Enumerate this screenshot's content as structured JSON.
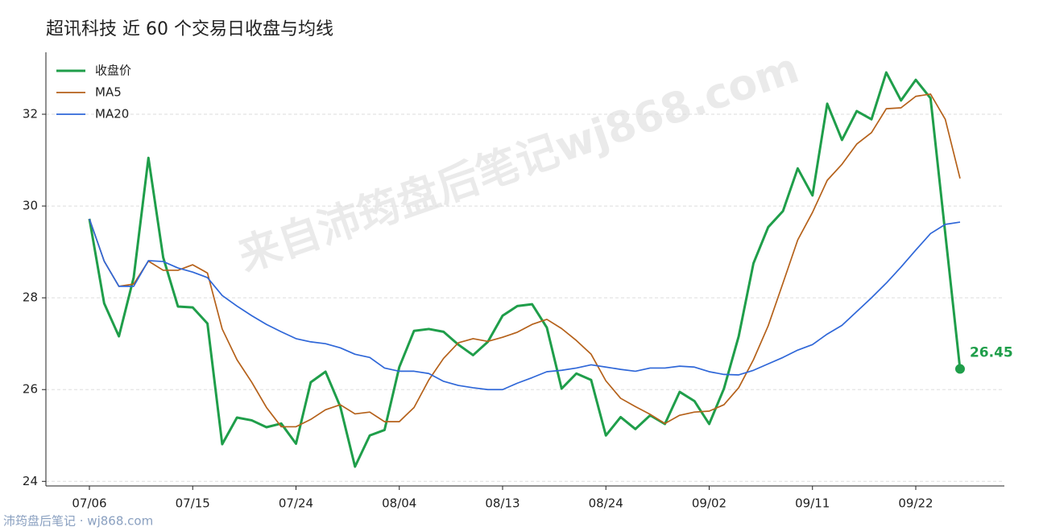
{
  "chart_data": {
    "type": "line",
    "title": "超讯科技 近 60 个交易日收盘与均线",
    "watermark": "来自沛筠盘后笔记wj868.com",
    "footer": "沛筠盘后笔记 · wj868.com",
    "categories": [
      "07/06",
      null,
      null,
      null,
      null,
      null,
      null,
      "07/15",
      null,
      null,
      null,
      null,
      null,
      null,
      "07/24",
      null,
      null,
      null,
      null,
      null,
      null,
      "08/04",
      null,
      null,
      null,
      null,
      null,
      null,
      "08/13",
      null,
      null,
      null,
      null,
      null,
      null,
      "08/24",
      null,
      null,
      null,
      null,
      null,
      null,
      "09/02",
      null,
      null,
      null,
      null,
      null,
      null,
      "09/11",
      null,
      null,
      null,
      null,
      null,
      null,
      "09/22",
      null,
      null,
      null
    ],
    "series": [
      {
        "name": "收盘价",
        "color": "#1f9e4a",
        "width": 3,
        "values": [
          29.72,
          27.88,
          27.16,
          28.44,
          31.05,
          28.88,
          27.81,
          27.79,
          27.44,
          24.81,
          25.39,
          25.33,
          25.18,
          25.26,
          24.82,
          26.16,
          26.39,
          25.63,
          24.32,
          25.0,
          25.12,
          26.49,
          27.28,
          27.32,
          27.26,
          26.98,
          26.75,
          27.04,
          27.61,
          27.82,
          27.86,
          27.35,
          26.02,
          26.35,
          26.21,
          25.0,
          25.4,
          25.14,
          25.44,
          25.25,
          25.95,
          25.75,
          25.25,
          26.02,
          27.16,
          28.75,
          29.54,
          29.89,
          30.82,
          30.23,
          32.23,
          31.44,
          32.07,
          31.89,
          32.91,
          32.3,
          32.75,
          32.35,
          29.4,
          26.45
        ]
      },
      {
        "name": "MA5",
        "color": "#b5611a",
        "width": 1.7,
        "values": [
          29.72,
          28.8,
          28.25,
          28.3,
          28.8,
          28.6,
          28.6,
          28.72,
          28.54,
          27.32,
          26.65,
          26.16,
          25.61,
          25.19,
          25.19,
          25.35,
          25.56,
          25.67,
          25.47,
          25.51,
          25.3,
          25.3,
          25.61,
          26.21,
          26.68,
          27.02,
          27.11,
          27.05,
          27.14,
          27.25,
          27.42,
          27.53,
          27.33,
          27.07,
          26.77,
          26.19,
          25.81,
          25.63,
          25.46,
          25.26,
          25.44,
          25.51,
          25.53,
          25.67,
          26.04,
          26.65,
          27.39,
          28.32,
          29.26,
          29.86,
          30.56,
          30.91,
          31.35,
          31.6,
          32.12,
          32.14,
          32.39,
          32.44,
          31.89,
          30.6
        ]
      },
      {
        "name": "MA20",
        "color": "#2f67d8",
        "width": 1.7,
        "values": [
          29.72,
          28.8,
          28.25,
          28.25,
          28.81,
          28.79,
          28.65,
          28.56,
          28.44,
          28.05,
          27.82,
          27.61,
          27.42,
          27.26,
          27.11,
          27.04,
          27.0,
          26.91,
          26.77,
          26.7,
          26.47,
          26.4,
          26.4,
          26.35,
          26.18,
          26.09,
          26.04,
          26.0,
          26.0,
          26.14,
          26.26,
          26.39,
          26.42,
          26.47,
          26.54,
          26.49,
          26.44,
          26.4,
          26.47,
          26.47,
          26.51,
          26.49,
          26.39,
          26.33,
          26.32,
          26.42,
          26.56,
          26.7,
          26.86,
          26.98,
          27.21,
          27.4,
          27.7,
          28.0,
          28.32,
          28.67,
          29.04,
          29.4,
          29.6,
          29.65
        ]
      }
    ],
    "ylim": [
      23.9,
      33.35
    ],
    "yticks": [
      24,
      26,
      28,
      30,
      32
    ],
    "grid": true,
    "legend": "upper-left"
  }
}
